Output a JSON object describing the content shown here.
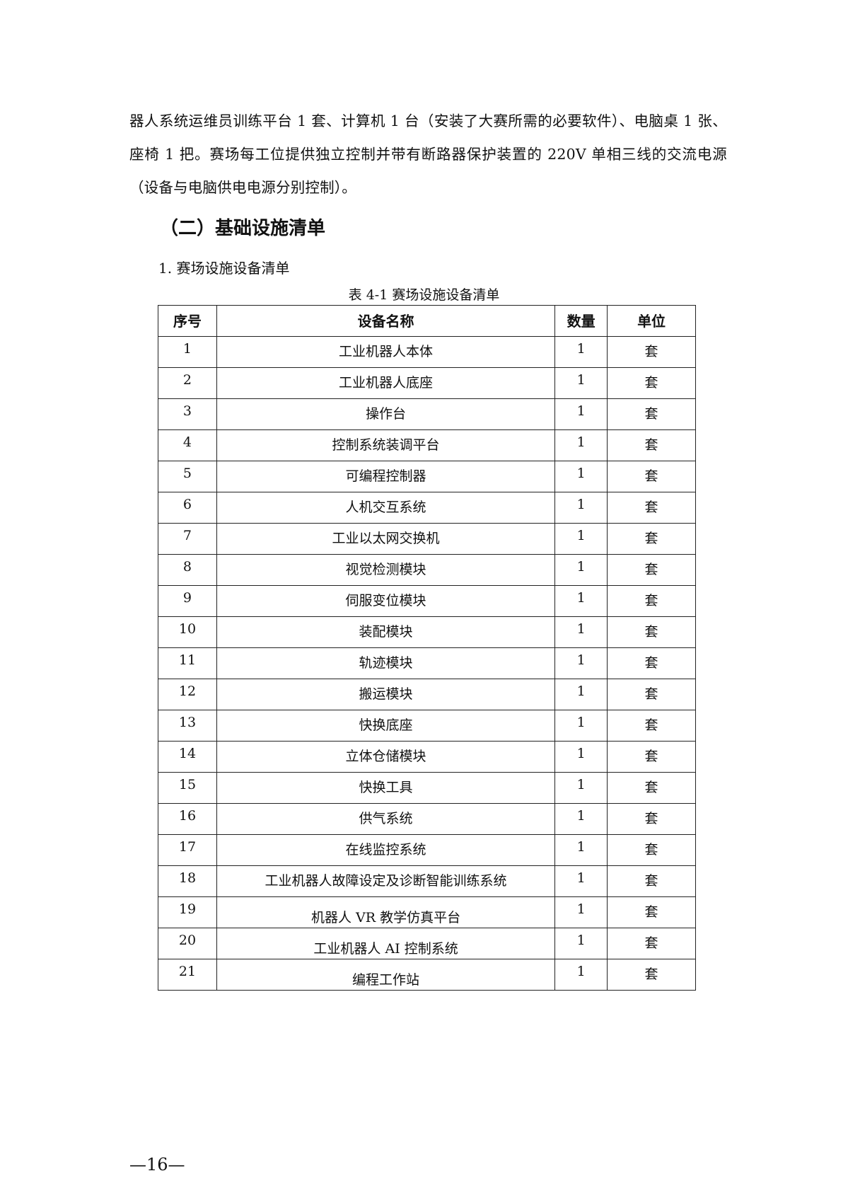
{
  "paragraph": "器人系统运维员训练平台 1 套、计算机 1 台（安装了大赛所需的必要软件）、电脑桌 1 张、座椅 1 把。赛场每工位提供独立控制并带有断路器保护装置的 220V 单相三线的交流电源（设备与电脑供电电源分别控制）。",
  "section_heading": "（二）基础设施清单",
  "subsection_heading": "1. 赛场设施设备清单",
  "table_caption": "表 4-1 赛场设施设备清单",
  "table": {
    "headers": [
      "序号",
      "设备名称",
      "数量",
      "单位"
    ],
    "rows": [
      [
        "1",
        "工业机器人本体",
        "1",
        "套"
      ],
      [
        "2",
        "工业机器人底座",
        "1",
        "套"
      ],
      [
        "3",
        "操作台",
        "1",
        "套"
      ],
      [
        "4",
        "控制系统装调平台",
        "1",
        "套"
      ],
      [
        "5",
        "可编程控制器",
        "1",
        "套"
      ],
      [
        "6",
        "人机交互系统",
        "1",
        "套"
      ],
      [
        "7",
        "工业以太网交换机",
        "1",
        "套"
      ],
      [
        "8",
        "视觉检测模块",
        "1",
        "套"
      ],
      [
        "9",
        "伺服变位模块",
        "1",
        "套"
      ],
      [
        "10",
        "装配模块",
        "1",
        "套"
      ],
      [
        "11",
        "轨迹模块",
        "1",
        "套"
      ],
      [
        "12",
        "搬运模块",
        "1",
        "套"
      ],
      [
        "13",
        "快换底座",
        "1",
        "套"
      ],
      [
        "14",
        "立体仓储模块",
        "1",
        "套"
      ],
      [
        "15",
        "快换工具",
        "1",
        "套"
      ],
      [
        "16",
        "供气系统",
        "1",
        "套"
      ],
      [
        "17",
        "在线监控系统",
        "1",
        "套"
      ],
      [
        "18",
        "工业机器人故障设定及诊断智能训练系统",
        "1",
        "套"
      ],
      [
        "19",
        "机器人 VR 教学仿真平台",
        "1",
        "套"
      ],
      [
        "20",
        "工业机器人 AI 控制系统",
        "1",
        "套"
      ],
      [
        "21",
        "编程工作站",
        "1",
        "套"
      ]
    ]
  },
  "page_number": "—16—"
}
